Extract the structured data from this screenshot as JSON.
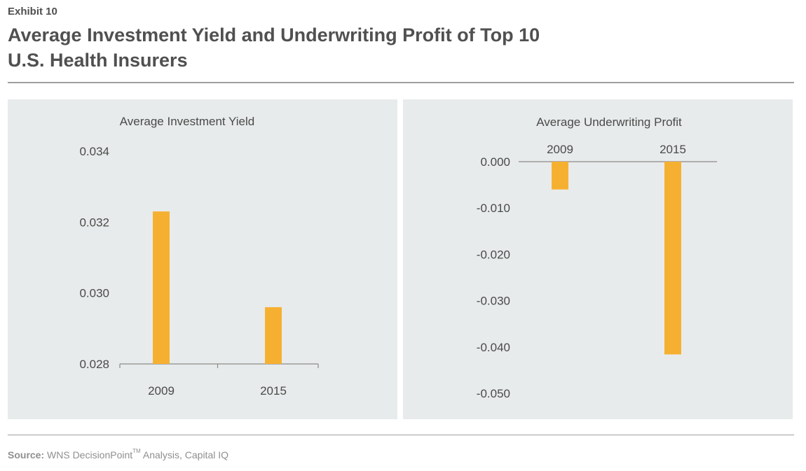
{
  "header": {
    "exhibit": "Exhibit 10",
    "title_line1": "Average Investment Yield and Underwriting Profit of Top 10",
    "title_line2": "U.S. Health Insurers"
  },
  "footer": {
    "source_label": "Source:",
    "source_text": "WNS DecisionPoint",
    "source_tm": "TM",
    "source_rest": " Analysis, Capital IQ"
  },
  "colors": {
    "bar": "#f6b031",
    "panel_bg": "#e8ebeb",
    "axis": "#8a8a8a",
    "text": "#4a4a4a"
  },
  "chart_data": [
    {
      "type": "bar",
      "title": "Average Investment Yield",
      "categories": [
        "2009",
        "2015"
      ],
      "values": [
        0.0323,
        0.0296
      ],
      "ylim": [
        0.028,
        0.034
      ],
      "yticks": [
        "0.034",
        "0.032",
        "0.030",
        "0.028"
      ],
      "ytick_values": [
        0.034,
        0.032,
        0.03,
        0.028
      ],
      "xlabel": "",
      "ylabel": "",
      "category_label_position": "bottom",
      "grid": false,
      "color": "#f6b031"
    },
    {
      "type": "bar",
      "title": "Average Underwriting Profit",
      "categories": [
        "2009",
        "2015"
      ],
      "values": [
        -0.006,
        -0.0416
      ],
      "ylim": [
        -0.05,
        0.0
      ],
      "yticks": [
        "0.000",
        "-0.010",
        "-0.020",
        "-0.030",
        "-0.040",
        "-0.050"
      ],
      "ytick_values": [
        0.0,
        -0.01,
        -0.02,
        -0.03,
        -0.04,
        -0.05
      ],
      "xlabel": "",
      "ylabel": "",
      "category_label_position": "top",
      "grid": false,
      "color": "#f6b031"
    }
  ]
}
